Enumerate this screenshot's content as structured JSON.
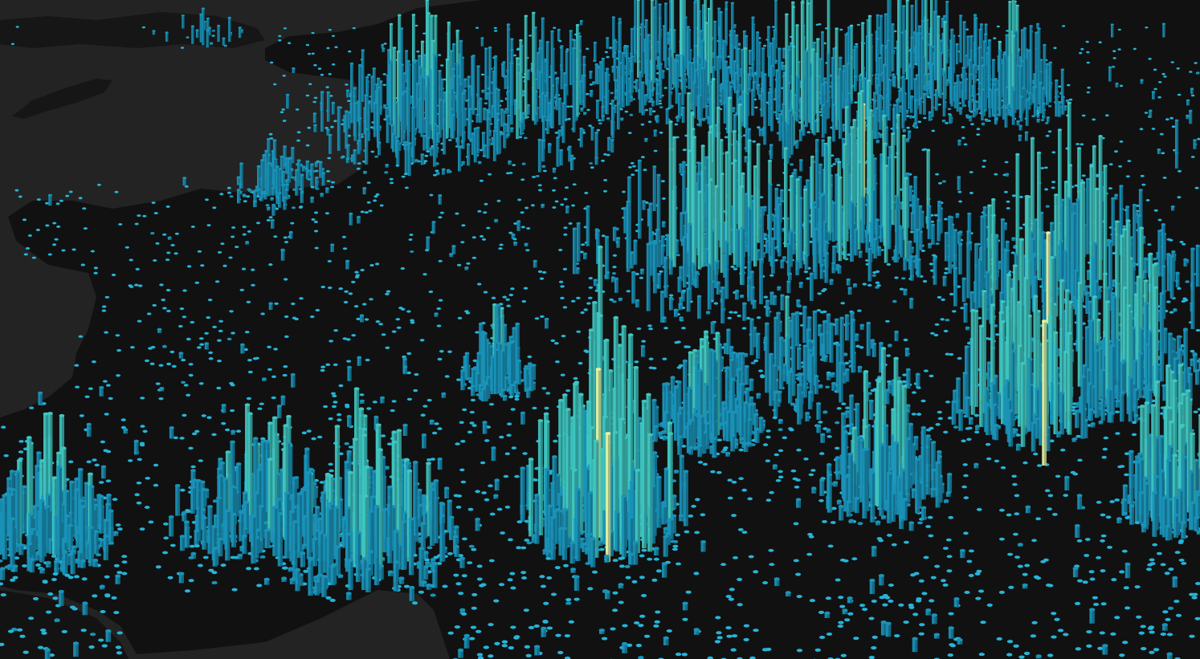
{
  "map": {
    "view": "3d-extruded-column-layer",
    "basemap_style": "dark",
    "colors": {
      "sea": "#232323",
      "land": "#111111",
      "border": "#2a2a2a",
      "column_low": "#1a93b8",
      "column_mid": "#3fc6c0",
      "column_high": "#e6f3a2",
      "column_top": "#27b4d8"
    },
    "ui_text": []
  }
}
